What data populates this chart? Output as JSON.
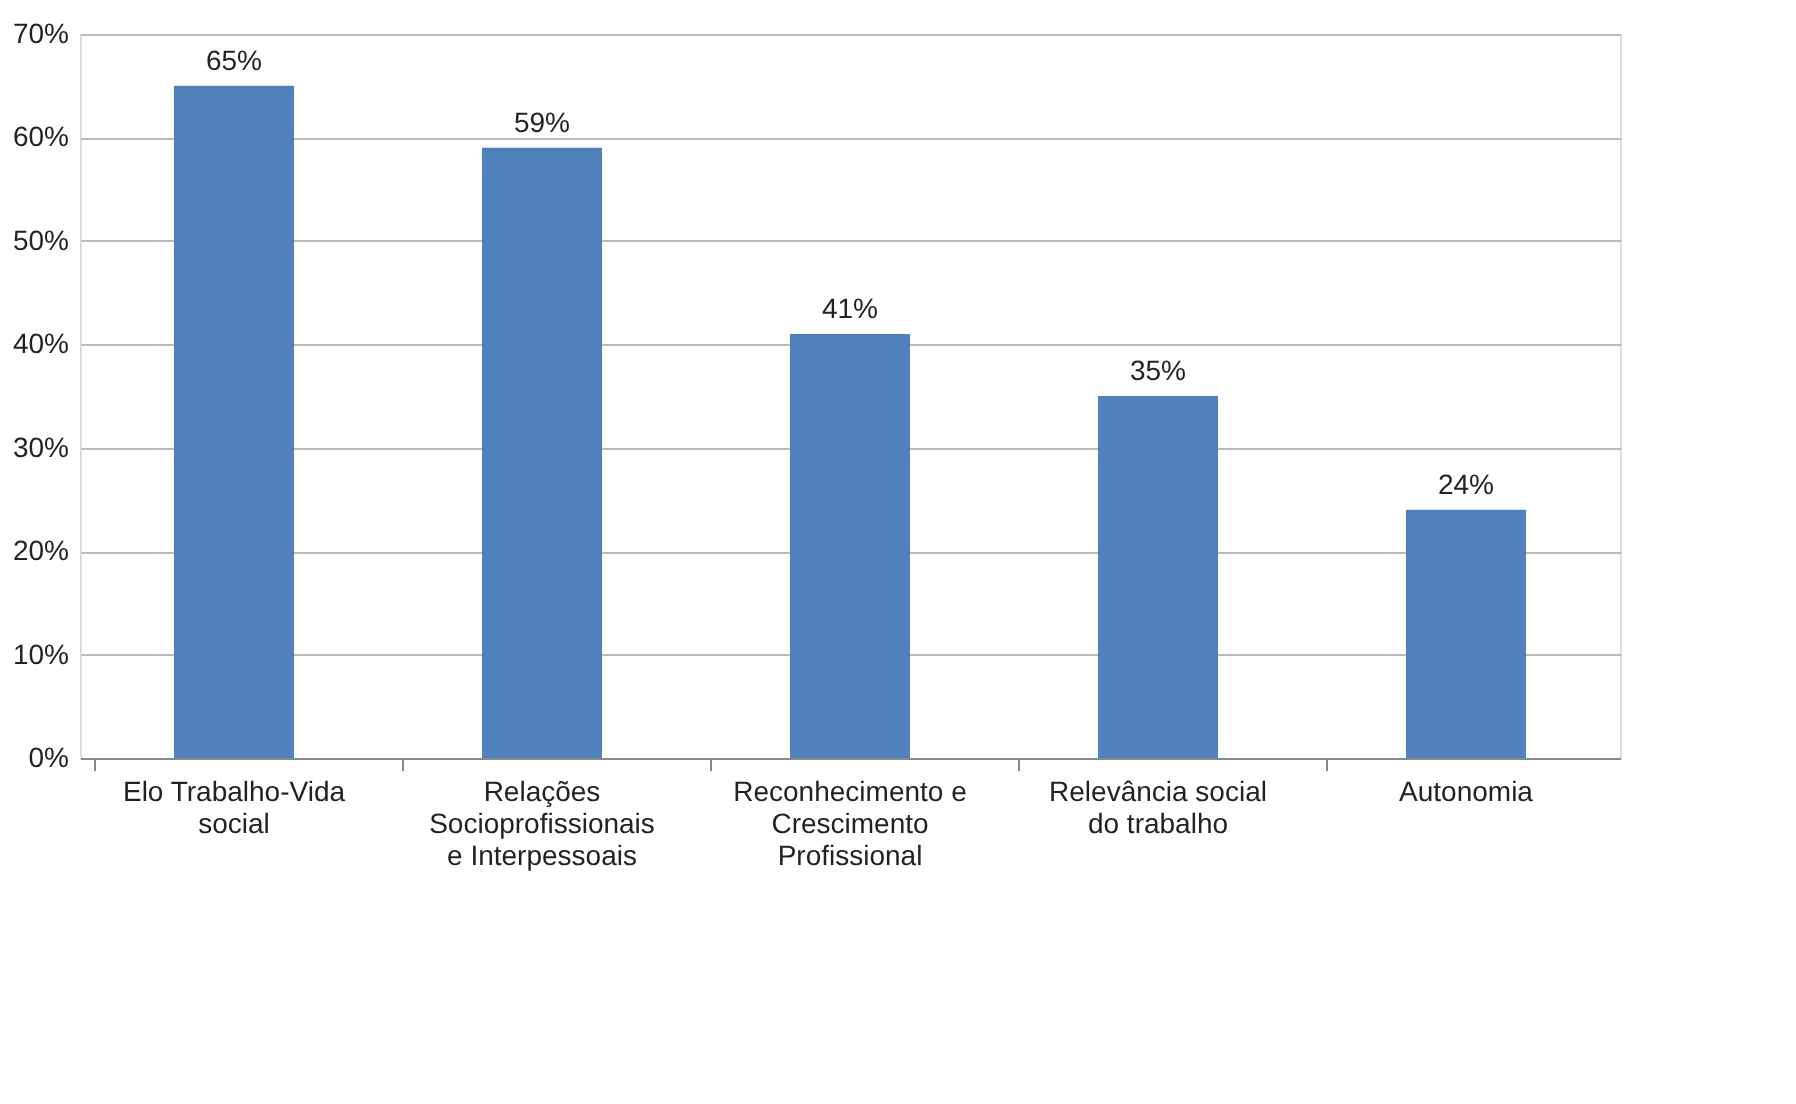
{
  "chart_data": {
    "type": "bar",
    "categories": [
      "Elo Trabalho-Vida social",
      "Relações Socioprofissionais e Interpessoais",
      "Reconhecimento e Crescimento Profissional",
      "Relevância social do trabalho",
      "Autonomia"
    ],
    "values": [
      65,
      59,
      41,
      35,
      24
    ],
    "value_labels": [
      "65%",
      "59%",
      "41%",
      "35%",
      "24%"
    ],
    "color": "#4f81bd",
    "ylim": [
      0,
      70
    ],
    "yticks": [
      {
        "value": 0,
        "label": "0%"
      },
      {
        "value": 10,
        "label": "10%"
      },
      {
        "value": 20,
        "label": "20%"
      },
      {
        "value": 30,
        "label": "30%"
      },
      {
        "value": 40,
        "label": "40%"
      },
      {
        "value": 50,
        "label": "50%"
      },
      {
        "value": 60,
        "label": "60%"
      },
      {
        "value": 70,
        "label": "70%"
      }
    ],
    "grid": "y"
  }
}
